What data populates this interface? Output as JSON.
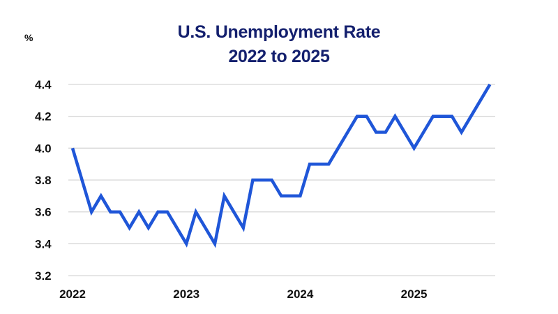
{
  "chart_data": {
    "type": "line",
    "title": "U.S. Unemployment Rate",
    "subtitle": "2022 to 2025",
    "xlabel": "",
    "ylabel": "%",
    "ylim": [
      3.2,
      4.4
    ],
    "yticks": [
      "4.4",
      "4.2",
      "4.0",
      "3.8",
      "3.6",
      "3.4",
      "3.2"
    ],
    "xticks": [
      "2022",
      "2023",
      "2024",
      "2025"
    ],
    "grid": true,
    "legend": null,
    "line_color": "#1f56d8",
    "series": [
      {
        "name": "Unemployment rate",
        "x": [
          "2022-01",
          "2022-02",
          "2022-03",
          "2022-04",
          "2022-05",
          "2022-06",
          "2022-07",
          "2022-08",
          "2022-09",
          "2022-10",
          "2022-11",
          "2022-12",
          "2023-01",
          "2023-02",
          "2023-03",
          "2023-04",
          "2023-05",
          "2023-06",
          "2023-07",
          "2023-08",
          "2023-09",
          "2023-10",
          "2023-11",
          "2023-12",
          "2024-01",
          "2024-02",
          "2024-03",
          "2024-04",
          "2024-05",
          "2024-06",
          "2024-07",
          "2024-08",
          "2024-09",
          "2024-10",
          "2024-11",
          "2024-12",
          "2025-01",
          "2025-02",
          "2025-03",
          "2025-04",
          "2025-05",
          "2025-06",
          "2025-07",
          "2025-08",
          "2025-09"
        ],
        "values": [
          4.0,
          3.8,
          3.6,
          3.7,
          3.6,
          3.6,
          3.5,
          3.6,
          3.5,
          3.6,
          3.6,
          3.5,
          3.4,
          3.6,
          3.5,
          3.4,
          3.7,
          3.6,
          3.5,
          3.8,
          3.8,
          3.8,
          3.7,
          3.7,
          3.7,
          3.9,
          3.9,
          3.9,
          4.0,
          4.1,
          4.2,
          4.2,
          4.1,
          4.1,
          4.2,
          4.1,
          4.0,
          4.1,
          4.2,
          4.2,
          4.2,
          4.1,
          4.2,
          4.3,
          4.4
        ]
      }
    ]
  }
}
